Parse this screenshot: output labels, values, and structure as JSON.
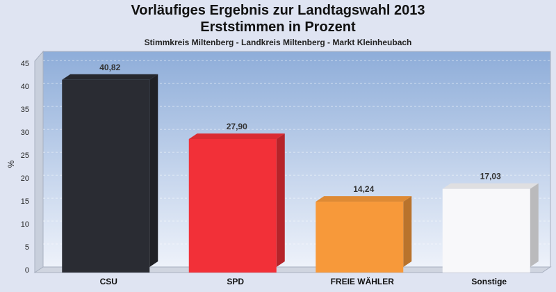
{
  "chart_data": {
    "type": "bar",
    "title": "Vorläufiges Ergebnis zur Landtagswahl 2013",
    "subtitle": "Erststimmen in Prozent",
    "caption": "Stimmkreis Miltenberg - Landkreis Miltenberg - Markt Kleinheubach",
    "xlabel": "",
    "ylabel": "%",
    "ylim": [
      0,
      47
    ],
    "yticks": [
      0,
      5,
      10,
      15,
      20,
      25,
      30,
      35,
      40,
      45
    ],
    "grid": true,
    "categories": [
      "CSU",
      "SPD",
      "FREIE WÄHLER",
      "Sonstige"
    ],
    "values": [
      40.82,
      27.9,
      14.24,
      17.03
    ],
    "value_labels": [
      "40,82",
      "27,90",
      "14,24",
      "17,03"
    ],
    "colors": [
      "#2a2c33",
      "#f23038",
      "#f7993a",
      "#f8f8fa"
    ]
  }
}
